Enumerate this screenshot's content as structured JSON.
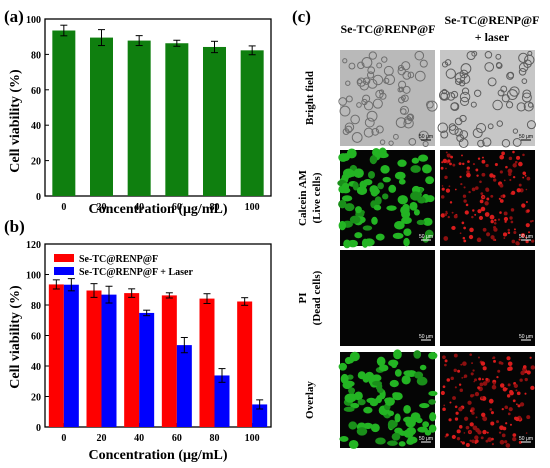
{
  "panels": {
    "a": {
      "label": "(a)"
    },
    "b": {
      "label": "(b)"
    },
    "c": {
      "label": "(c)"
    }
  },
  "colors": {
    "green": "#0f7f0f",
    "red": "#fe0000",
    "blue": "#0000fe"
  },
  "chart_data": [
    {
      "type": "bar",
      "panel": "(a)",
      "categories": [
        "0",
        "20",
        "40",
        "60",
        "80",
        "100"
      ],
      "series": [
        {
          "values": [
            93.5,
            89.5,
            87.8,
            86.3,
            84.2,
            82.3
          ],
          "errors": [
            3.0,
            4.5,
            2.8,
            1.7,
            3.2,
            2.5
          ]
        }
      ],
      "xlabel": "Concentration (μg/mL)",
      "ylabel": "Cell viability (%)",
      "ylim": [
        0,
        100
      ],
      "yticks": [
        0,
        20,
        40,
        60,
        80,
        100
      ],
      "grid": false
    },
    {
      "type": "bar",
      "panel": "(b)",
      "categories": [
        "0",
        "20",
        "40",
        "60",
        "80",
        "100"
      ],
      "series": [
        {
          "name": "Se-TC@RENP@F",
          "values": [
            93.5,
            89.5,
            87.8,
            86.3,
            84.2,
            82.3
          ],
          "errors": [
            3.0,
            4.5,
            2.8,
            1.7,
            3.2,
            2.5
          ]
        },
        {
          "name": "Se-TC@RENP@F + Laser",
          "values": [
            93.3,
            86.8,
            74.8,
            53.7,
            33.8,
            14.8
          ],
          "errors": [
            4.0,
            5.5,
            1.8,
            5.0,
            4.5,
            3.0
          ]
        }
      ],
      "xlabel": "Concentration (μg/mL)",
      "ylabel": "Cell viability (%)",
      "ylim": [
        0,
        120
      ],
      "yticks": [
        0,
        20,
        40,
        60,
        80,
        100,
        120
      ],
      "legend": "top-left",
      "grid": false
    }
  ],
  "micro": {
    "col_titles": [
      "Se-TC@RENP@F",
      "Se-TC@RENP@F",
      "+ laser"
    ],
    "rows": [
      {
        "label1": "Bright field",
        "label2": ""
      },
      {
        "label1": "Calcein AM",
        "label2": "(Live cells)"
      },
      {
        "label1": "PI",
        "label2": "(Dead cells)"
      },
      {
        "label1": "Overlay",
        "label2": ""
      }
    ],
    "scale_text": "50 μm"
  }
}
